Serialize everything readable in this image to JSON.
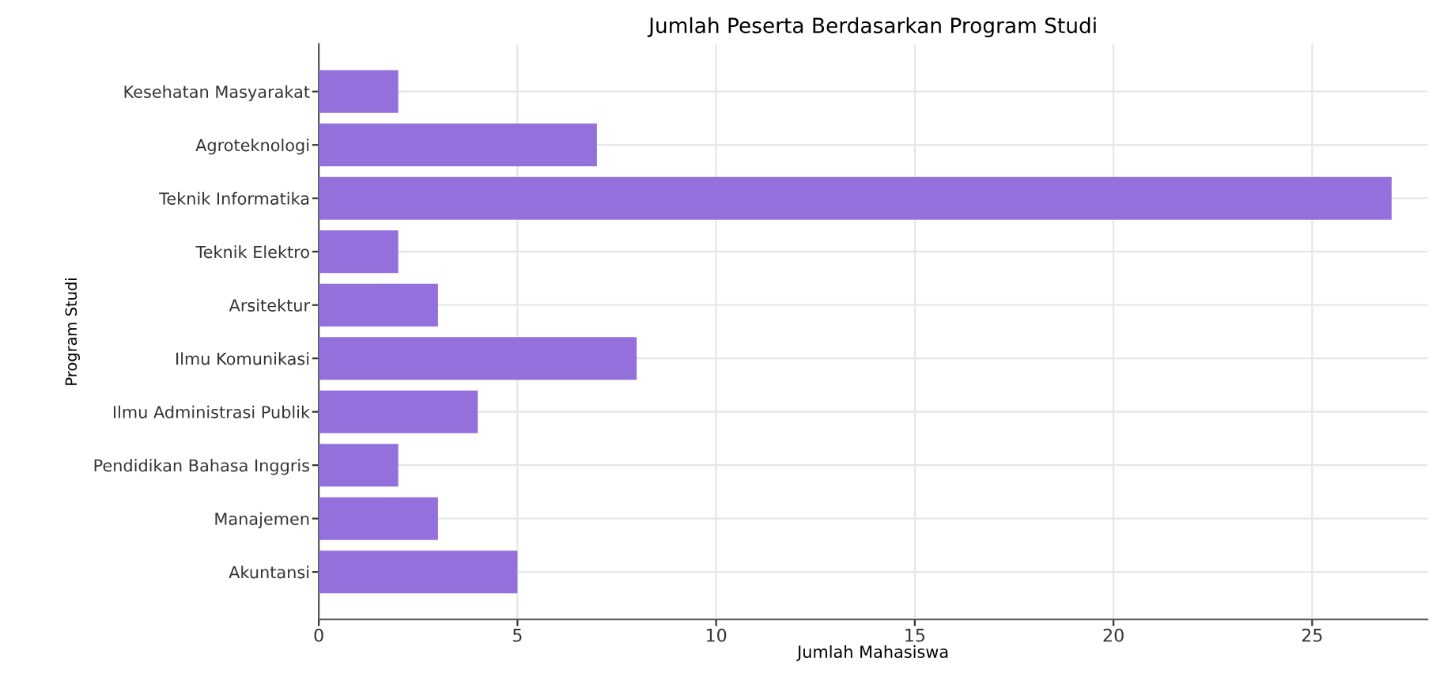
{
  "chart_data": {
    "type": "bar",
    "orientation": "horizontal",
    "title": "Jumlah Peserta Berdasarkan Program Studi",
    "xlabel": "Jumlah Mahasiswa",
    "ylabel": "Program Studi",
    "categories": [
      "Kesehatan Masyarakat",
      "Agroteknologi",
      "Teknik Informatika",
      "Teknik Elektro",
      "Arsitektur",
      "Ilmu Komunikasi",
      "Ilmu Administrasi Publik",
      "Pendidikan Bahasa Inggris",
      "Manajemen",
      "Akuntansi"
    ],
    "values": [
      2,
      7,
      27,
      2,
      3,
      8,
      4,
      2,
      3,
      5
    ],
    "color": "#9370db",
    "xlim": [
      0,
      27.9
    ],
    "xticks": [
      0,
      5,
      10,
      15,
      20,
      25
    ],
    "grid": true
  }
}
